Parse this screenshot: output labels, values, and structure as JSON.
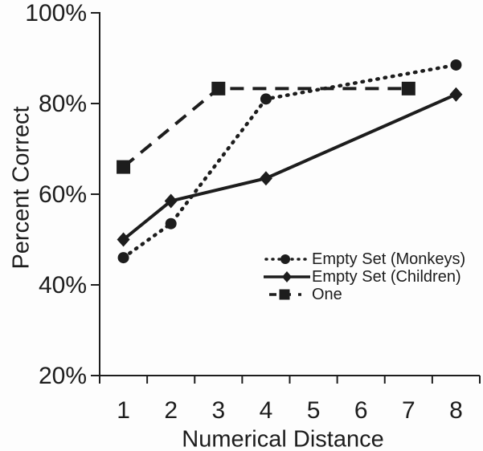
{
  "chart_data": {
    "type": "line",
    "title": "",
    "xlabel": "Numerical Distance",
    "ylabel": "Percent Correct",
    "x_categories": [
      1,
      2,
      3,
      4,
      5,
      6,
      7,
      8
    ],
    "y_ticks": [
      {
        "value": 20,
        "label": "20%"
      },
      {
        "value": 40,
        "label": "40%"
      },
      {
        "value": 60,
        "label": "60%"
      },
      {
        "value": 80,
        "label": "80%"
      },
      {
        "value": 100,
        "label": "100%"
      }
    ],
    "ylim": [
      20,
      100
    ],
    "grid": false,
    "legend_position": "inside-lower-right",
    "ink_color": "#1d1d1d",
    "background_color": "#fdfdfd",
    "series": [
      {
        "name": "Empty Set (Monkeys)",
        "marker": "circle",
        "line_style": "dotted",
        "points": [
          {
            "x": 1,
            "y": 46
          },
          {
            "x": 2,
            "y": 53.5
          },
          {
            "x": 4,
            "y": 81
          },
          {
            "x": 8,
            "y": 88.5
          }
        ]
      },
      {
        "name": "Empty Set (Children)",
        "marker": "diamond",
        "line_style": "solid",
        "points": [
          {
            "x": 1,
            "y": 50
          },
          {
            "x": 2,
            "y": 58.5
          },
          {
            "x": 4,
            "y": 63.5
          },
          {
            "x": 8,
            "y": 82
          }
        ]
      },
      {
        "name": "One",
        "marker": "square",
        "line_style": "dashed",
        "points": [
          {
            "x": 1,
            "y": 66
          },
          {
            "x": 3,
            "y": 83.3
          },
          {
            "x": 7,
            "y": 83.3
          }
        ]
      }
    ]
  }
}
